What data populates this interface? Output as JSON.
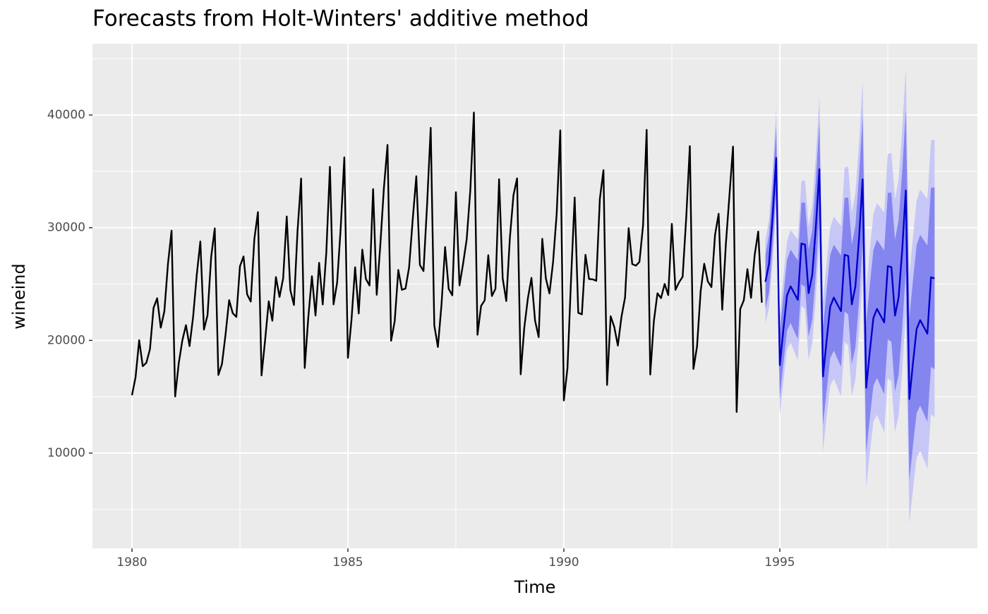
{
  "chart_data": {
    "type": "line",
    "title": "Forecasts from Holt-Winters' additive method",
    "xlabel": "Time",
    "ylabel": "wineind",
    "xlim": [
      1979.085,
      1999.575
    ],
    "xticks": [
      1980,
      1985,
      1990,
      1995
    ],
    "xminor": [
      1982.5,
      1987.5,
      1992.5,
      1997.5
    ],
    "ylim": [
      1547,
      46325
    ],
    "yticks": [
      10000,
      20000,
      30000,
      40000
    ],
    "yminor": [
      5000,
      15000,
      25000,
      35000,
      45000
    ],
    "grid": true,
    "background": "#ebebeb",
    "series": [
      {
        "color": "#000000",
        "x": [
          1980,
          1980.0833,
          1980.1667,
          1980.25,
          1980.3333,
          1980.4167,
          1980.5,
          1980.5833,
          1980.6667,
          1980.75,
          1980.8333,
          1980.9167,
          1981,
          1981.0833,
          1981.1667,
          1981.25,
          1981.3333,
          1981.4167,
          1981.5,
          1981.5833,
          1981.6667,
          1981.75,
          1981.8333,
          1981.9167,
          1982,
          1982.0833,
          1982.1667,
          1982.25,
          1982.3333,
          1982.4167,
          1982.5,
          1982.5833,
          1982.6667,
          1982.75,
          1982.8333,
          1982.9167,
          1983,
          1983.0833,
          1983.1667,
          1983.25,
          1983.3333,
          1983.4167,
          1983.5,
          1983.5833,
          1983.6667,
          1983.75,
          1983.8333,
          1983.9167,
          1984,
          1984.0833,
          1984.1667,
          1984.25,
          1984.3333,
          1984.4167,
          1984.5,
          1984.5833,
          1984.6667,
          1984.75,
          1984.8333,
          1984.9167,
          1985,
          1985.0833,
          1985.1667,
          1985.25,
          1985.3333,
          1985.4167,
          1985.5,
          1985.5833,
          1985.6667,
          1985.75,
          1985.8333,
          1985.9167,
          1986,
          1986.0833,
          1986.1667,
          1986.25,
          1986.3333,
          1986.4167,
          1986.5,
          1986.5833,
          1986.6667,
          1986.75,
          1986.8333,
          1986.9167,
          1987,
          1987.0833,
          1987.1667,
          1987.25,
          1987.3333,
          1987.4167,
          1987.5,
          1987.5833,
          1987.6667,
          1987.75,
          1987.8333,
          1987.9167,
          1988,
          1988.0833,
          1988.1667,
          1988.25,
          1988.3333,
          1988.4167,
          1988.5,
          1988.5833,
          1988.6667,
          1988.75,
          1988.8333,
          1988.9167,
          1989,
          1989.0833,
          1989.1667,
          1989.25,
          1989.3333,
          1989.4167,
          1989.5,
          1989.5833,
          1989.6667,
          1989.75,
          1989.8333,
          1989.9167,
          1990,
          1990.0833,
          1990.1667,
          1990.25,
          1990.3333,
          1990.4167,
          1990.5,
          1990.5833,
          1990.6667,
          1990.75,
          1990.8333,
          1990.9167,
          1991,
          1991.0833,
          1991.1667,
          1991.25,
          1991.3333,
          1991.4167,
          1991.5,
          1991.5833,
          1991.6667,
          1991.75,
          1991.8333,
          1991.9167,
          1992,
          1992.0833,
          1992.1667,
          1992.25,
          1992.3333,
          1992.4167,
          1992.5,
          1992.5833,
          1992.6667,
          1992.75,
          1992.8333,
          1992.9167,
          1993,
          1993.0833,
          1993.1667,
          1993.25,
          1993.3333,
          1993.4167,
          1993.5,
          1993.5833,
          1993.6667,
          1993.75,
          1993.8333,
          1993.9167,
          1994,
          1994.0833,
          1994.1667,
          1994.25,
          1994.3333,
          1994.4167,
          1994.5,
          1994.5833
        ],
        "values": [
          15136,
          16733,
          20016,
          17708,
          18019,
          19227,
          22893,
          23739,
          21133,
          22591,
          26786,
          29740,
          15028,
          17977,
          20008,
          21354,
          19498,
          22125,
          25817,
          28779,
          20960,
          22254,
          27392,
          29945,
          16933,
          17892,
          20533,
          23569,
          22417,
          22084,
          26580,
          27454,
          24081,
          23451,
          28991,
          31386,
          16896,
          20045,
          23471,
          21747,
          25621,
          23859,
          25500,
          30998,
          24475,
          23145,
          29701,
          34365,
          17556,
          22077,
          25702,
          22214,
          26886,
          23191,
          27831,
          35406,
          23195,
          25110,
          30009,
          36242,
          18450,
          21845,
          26488,
          22394,
          28057,
          25451,
          24872,
          33424,
          24052,
          28449,
          33533,
          37351,
          19969,
          21701,
          26249,
          24493,
          24603,
          26485,
          30723,
          34569,
          26689,
          26157,
          32064,
          38870,
          21337,
          19419,
          23166,
          28286,
          24570,
          24001,
          33151,
          24878,
          26804,
          28967,
          33311,
          40226,
          20504,
          23060,
          23562,
          27562,
          23940,
          24584,
          34303,
          25517,
          23494,
          29095,
          32903,
          34379,
          16991,
          21109,
          23740,
          25552,
          21752,
          20294,
          29009,
          25500,
          24166,
          26960,
          31222,
          38641,
          14672,
          17543,
          25453,
          32683,
          22449,
          22316,
          27595,
          25451,
          25421,
          25288,
          32568,
          35110,
          16052,
          22146,
          21198,
          19543,
          22084,
          23816,
          29961,
          26773,
          26635,
          26972,
          30207,
          38687,
          16974,
          21697,
          24179,
          23757,
          25013,
          24019,
          30345,
          24488,
          25156,
          25650,
          30923,
          37240,
          17466,
          19463,
          24352,
          26805,
          25236,
          24735,
          29356,
          31234,
          22724,
          28496,
          32857,
          37198,
          13652,
          22784,
          23565,
          26323,
          23779,
          27549,
          29660,
          23356
        ]
      },
      {
        "color": "#0000cc",
        "band80_color": "#8585f0",
        "band95_color": "#c7c7f7",
        "x": [
          1994.6667,
          1994.75,
          1994.8333,
          1994.9167,
          1995,
          1995.0833,
          1995.1667,
          1995.25,
          1995.3333,
          1995.4167,
          1995.5,
          1995.5833,
          1995.6667,
          1995.75,
          1995.8333,
          1995.9167,
          1996,
          1996.0833,
          1996.1667,
          1996.25,
          1996.3333,
          1996.4167,
          1996.5,
          1996.5833,
          1996.6667,
          1996.75,
          1996.8333,
          1996.9167,
          1997,
          1997.0833,
          1997.1667,
          1997.25,
          1997.3333,
          1997.4167,
          1997.5,
          1997.5833,
          1997.6667,
          1997.75,
          1997.8333,
          1997.9167,
          1998,
          1998.0833,
          1998.1667,
          1998.25,
          1998.3333,
          1998.4167,
          1998.5,
          1998.5833
        ],
        "values": [
          25200,
          26800,
          31000,
          36200,
          17800,
          21000,
          24000,
          24800,
          24200,
          23600,
          28600,
          28500,
          24200,
          25800,
          30000,
          35200,
          16800,
          20000,
          23000,
          23800,
          23200,
          22600,
          27600,
          27500,
          23200,
          24800,
          29000,
          34300,
          15800,
          19000,
          22000,
          22800,
          22200,
          21600,
          26600,
          26500,
          22200,
          23800,
          28000,
          33300,
          14800,
          18000,
          21000,
          21800,
          21200,
          20600,
          25600,
          25500
        ],
        "lower80": [
          22780,
          24260,
          28340,
          33420,
          14900,
          17980,
          20860,
          21540,
          20820,
          20100,
          24980,
          24760,
          20340,
          21820,
          25900,
          30980,
          12460,
          15540,
          18420,
          19100,
          18380,
          17660,
          22540,
          22320,
          17900,
          19380,
          23460,
          28640,
          10020,
          13100,
          15980,
          16660,
          15940,
          15220,
          20100,
          19880,
          15460,
          16940,
          21020,
          26200,
          7580,
          10660,
          13540,
          14220,
          13500,
          12780,
          17660,
          17440
        ],
        "upper80": [
          27620,
          29340,
          33660,
          38980,
          20700,
          24020,
          27140,
          28060,
          27580,
          27100,
          32220,
          32240,
          28060,
          29780,
          34100,
          39420,
          21140,
          24460,
          27580,
          28500,
          28020,
          27540,
          32660,
          32680,
          28500,
          30220,
          34540,
          39960,
          21580,
          24900,
          28020,
          28940,
          28460,
          27980,
          33100,
          33120,
          28940,
          30660,
          34980,
          40400,
          22020,
          25340,
          28460,
          29380,
          28900,
          28420,
          33540,
          33580
        ],
        "lower95": [
          21500,
          22910,
          26930,
          31950,
          13360,
          16380,
          19200,
          19810,
          19030,
          18240,
          23060,
          22780,
          18290,
          19710,
          23730,
          28740,
          10160,
          13180,
          15990,
          16610,
          15830,
          15040,
          19860,
          19570,
          15090,
          16510,
          20520,
          25640,
          6960,
          9970,
          12790,
          13410,
          12620,
          11840,
          16650,
          16370,
          11890,
          13300,
          17320,
          22440,
          3750,
          6770,
          9590,
          10200,
          9420,
          8640,
          13450,
          13170
        ],
        "upper95": [
          28900,
          30690,
          35070,
          40450,
          22240,
          25620,
          28800,
          29790,
          29370,
          28960,
          34140,
          34220,
          30110,
          31890,
          36270,
          41660,
          23440,
          26820,
          30010,
          30990,
          30570,
          30160,
          35340,
          35430,
          31310,
          33090,
          37480,
          42960,
          24640,
          28030,
          31210,
          32190,
          31780,
          31360,
          36550,
          36630,
          32510,
          34300,
          38680,
          44160,
          25850,
          29230,
          32410,
          33400,
          32980,
          32560,
          37750,
          37830
        ]
      }
    ]
  }
}
